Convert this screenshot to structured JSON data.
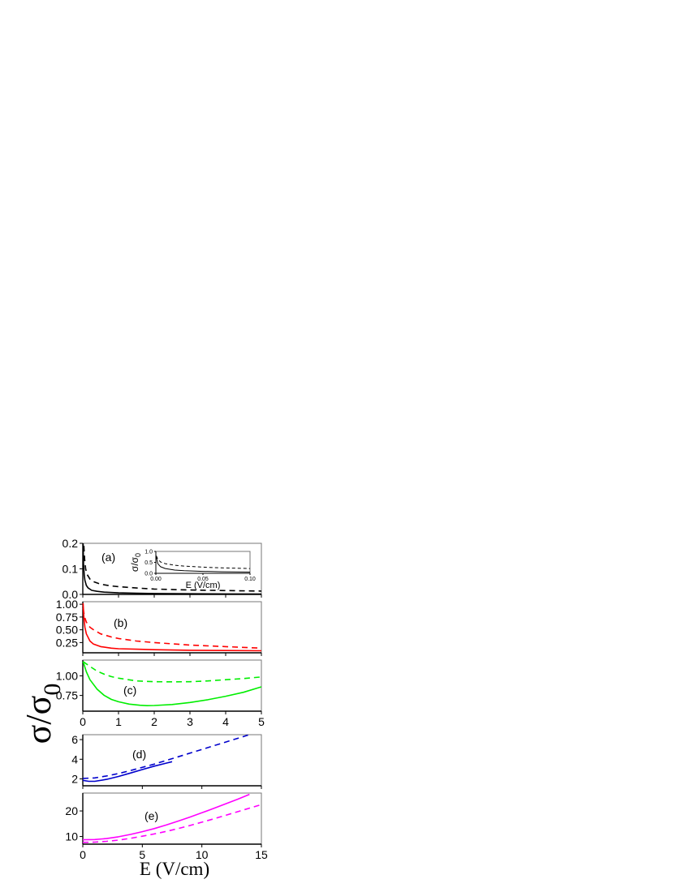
{
  "figure": {
    "y_label": "σ/σ",
    "y_label_sub": "0",
    "x_label_upper": "",
    "x_label_lower": "E (V/cm)"
  },
  "chart_data": [
    {
      "id": "a",
      "type": "line",
      "label": "(a)",
      "color": "#000000",
      "xlim": [
        0,
        5
      ],
      "ylim": [
        0,
        0.2
      ],
      "yticks": [
        0.0,
        0.1,
        0.2
      ],
      "ytick_labels": [
        "0.0",
        "0.1",
        "0.2"
      ],
      "xticks": [
        0,
        1,
        2,
        3,
        4,
        5
      ],
      "show_xtick_labels": false,
      "series": [
        {
          "style": "solid",
          "x": [
            0.01,
            0.02,
            0.04,
            0.06,
            0.1,
            0.15,
            0.25,
            0.4,
            0.6,
            1,
            1.5,
            2,
            3,
            4,
            5
          ],
          "y": [
            0.2,
            0.12,
            0.075,
            0.055,
            0.035,
            0.025,
            0.016,
            0.012,
            0.009,
            0.006,
            0.0045,
            0.0035,
            0.0025,
            0.002,
            0.0015
          ]
        },
        {
          "style": "dashed",
          "x": [
            0.03,
            0.05,
            0.08,
            0.12,
            0.2,
            0.3,
            0.5,
            0.8,
            1,
            1.5,
            2,
            3,
            4,
            5
          ],
          "y": [
            0.19,
            0.14,
            0.1,
            0.078,
            0.06,
            0.05,
            0.04,
            0.033,
            0.03,
            0.025,
            0.021,
            0.017,
            0.015,
            0.013
          ]
        }
      ],
      "inset": {
        "xlim": [
          0,
          0.1
        ],
        "ylim": [
          0,
          1.0
        ],
        "xticks": [
          0.0,
          0.05,
          0.1
        ],
        "xtick_labels": [
          "0.00",
          "0.05",
          "0.10"
        ],
        "yticks": [
          0.0,
          0.5,
          1.0
        ],
        "ytick_labels": [
          "0.0",
          "0.5",
          "1.0"
        ],
        "ylabel": "σ/σ",
        "ylabel_sub": "0",
        "xlabel": "E (V/cm)",
        "series": [
          {
            "style": "solid",
            "x": [
              0.0005,
              0.002,
              0.005,
              0.01,
              0.02,
              0.03,
              0.05,
              0.07,
              0.1
            ],
            "y": [
              0.75,
              0.45,
              0.3,
              0.22,
              0.15,
              0.12,
              0.09,
              0.07,
              0.055
            ]
          },
          {
            "style": "dashed",
            "x": [
              0.0005,
              0.002,
              0.005,
              0.01,
              0.02,
              0.03,
              0.05,
              0.07,
              0.1
            ],
            "y": [
              0.8,
              0.65,
              0.52,
              0.44,
              0.37,
              0.33,
              0.28,
              0.25,
              0.22
            ]
          }
        ]
      }
    },
    {
      "id": "b",
      "type": "line",
      "label": "(b)",
      "color": "#ff0000",
      "xlim": [
        0,
        5
      ],
      "ylim": [
        0.05,
        1.05
      ],
      "yticks": [
        0.25,
        0.5,
        0.75,
        1.0
      ],
      "ytick_labels": [
        "0.25",
        "0.50",
        "0.75",
        "1.00"
      ],
      "xticks": [
        0,
        1,
        2,
        3,
        4,
        5
      ],
      "show_xtick_labels": false,
      "series": [
        {
          "style": "solid",
          "x": [
            0.01,
            0.03,
            0.06,
            0.1,
            0.2,
            0.3,
            0.5,
            0.8,
            1,
            1.5,
            2,
            3,
            4,
            5
          ],
          "y": [
            1.02,
            0.75,
            0.55,
            0.42,
            0.28,
            0.22,
            0.17,
            0.14,
            0.13,
            0.12,
            0.11,
            0.1,
            0.095,
            0.09
          ]
        },
        {
          "style": "dashed",
          "x": [
            0.01,
            0.05,
            0.1,
            0.2,
            0.3,
            0.5,
            0.8,
            1,
            1.5,
            2,
            3,
            4,
            5
          ],
          "y": [
            0.92,
            0.75,
            0.65,
            0.55,
            0.5,
            0.42,
            0.36,
            0.33,
            0.28,
            0.25,
            0.2,
            0.17,
            0.14
          ]
        }
      ]
    },
    {
      "id": "c",
      "type": "line",
      "label": "(c)",
      "color": "#00ee00",
      "xlim": [
        0,
        5
      ],
      "ylim": [
        0.55,
        1.2
      ],
      "yticks": [
        0.75,
        1.0
      ],
      "ytick_labels": [
        "0.75",
        "1.00"
      ],
      "xticks": [
        0,
        1,
        2,
        3,
        4,
        5
      ],
      "xtick_labels": [
        "0",
        "1",
        "2",
        "3",
        "4",
        "5"
      ],
      "show_xtick_labels": true,
      "series": [
        {
          "style": "solid",
          "x": [
            0.01,
            0.1,
            0.2,
            0.4,
            0.6,
            0.8,
            1,
            1.3,
            1.6,
            1.8,
            2,
            2.5,
            3,
            3.5,
            4,
            4.5,
            5
          ],
          "y": [
            1.18,
            1.05,
            0.95,
            0.83,
            0.75,
            0.7,
            0.67,
            0.64,
            0.625,
            0.62,
            0.622,
            0.635,
            0.66,
            0.695,
            0.74,
            0.79,
            0.86
          ]
        },
        {
          "style": "dashed",
          "x": [
            0.01,
            0.2,
            0.4,
            0.6,
            0.8,
            1,
            1.5,
            2,
            2.5,
            3,
            3.5,
            4,
            4.5,
            5
          ],
          "y": [
            1.18,
            1.12,
            1.06,
            1.02,
            0.99,
            0.97,
            0.935,
            0.925,
            0.923,
            0.925,
            0.935,
            0.95,
            0.965,
            0.985
          ]
        }
      ]
    },
    {
      "id": "d",
      "type": "line",
      "label": "(d)",
      "color": "#0000cc",
      "xlim": [
        0,
        15
      ],
      "ylim": [
        1.3,
        6.5
      ],
      "yticks": [
        2,
        4,
        6
      ],
      "ytick_labels": [
        "2",
        "4",
        "6"
      ],
      "xticks": [
        0,
        5,
        10,
        15
      ],
      "show_xtick_labels": false,
      "series": [
        {
          "style": "solid",
          "x": [
            0,
            0.5,
            1,
            2,
            3,
            4,
            5,
            6,
            7,
            7.5
          ],
          "y": [
            1.85,
            1.75,
            1.75,
            1.95,
            2.25,
            2.6,
            2.95,
            3.3,
            3.6,
            3.75
          ]
        },
        {
          "style": "dashed",
          "x": [
            0,
            1,
            2,
            3,
            4,
            6,
            8,
            10,
            12,
            14
          ],
          "y": [
            2.05,
            2.1,
            2.3,
            2.55,
            2.85,
            3.5,
            4.25,
            5.0,
            5.75,
            6.5
          ]
        }
      ]
    },
    {
      "id": "e",
      "type": "line",
      "label": "(e)",
      "color": "#ff00ff",
      "xlim": [
        0,
        15
      ],
      "ylim": [
        7,
        27
      ],
      "yticks": [
        10,
        20
      ],
      "ytick_labels": [
        "10",
        "20"
      ],
      "xticks": [
        0,
        5,
        10,
        15
      ],
      "xtick_labels": [
        "0",
        "5",
        "10",
        "15"
      ],
      "show_xtick_labels": true,
      "series": [
        {
          "style": "solid",
          "x": [
            0,
            1,
            2,
            3,
            4,
            5,
            6,
            7,
            8,
            9,
            10,
            11,
            12,
            13,
            14
          ],
          "y": [
            8.7,
            8.8,
            9.2,
            9.9,
            10.8,
            11.9,
            13.1,
            14.5,
            16.0,
            17.6,
            19.3,
            21.0,
            22.8,
            24.6,
            26.5
          ]
        },
        {
          "style": "dashed",
          "x": [
            0,
            1,
            2,
            3,
            4,
            5,
            6,
            7,
            8,
            9,
            10,
            11,
            12,
            13,
            14,
            15
          ],
          "y": [
            7.7,
            7.8,
            8.1,
            8.6,
            9.3,
            10.1,
            11.0,
            12.0,
            13.1,
            14.3,
            15.6,
            16.9,
            18.3,
            19.7,
            21.1,
            22.5
          ]
        }
      ]
    }
  ]
}
